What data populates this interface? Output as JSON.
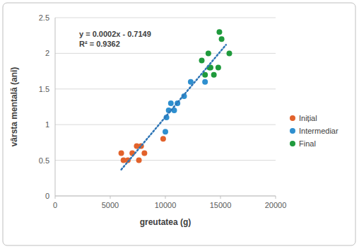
{
  "chart_data": {
    "type": "scatter",
    "x_label": "greutatea (g)",
    "y_label": "vârsta mentală (ani)",
    "annotations": [
      "y = 0.0002x  - 0.7149",
      "R² = 0.9362"
    ],
    "xlim": [
      0,
      20000
    ],
    "xticks": [
      0,
      5000,
      10000,
      15000,
      20000
    ],
    "ylim": [
      0,
      2.5
    ],
    "yticks": [
      0,
      0.5,
      1,
      1.5,
      2,
      2.5
    ],
    "grid": true,
    "legend": "right",
    "series": [
      {
        "name": "Inițial",
        "color": "#e2622b",
        "marker": "circle",
        "x": [
          6000,
          6200,
          6600,
          7000,
          7400,
          7600,
          7800,
          8100,
          9800
        ],
        "values": [
          0.6,
          0.5,
          0.5,
          0.6,
          0.7,
          0.5,
          0.7,
          0.6,
          0.8
        ]
      },
      {
        "name": "Intermediar",
        "color": "#2e8fcf",
        "marker": "circle",
        "x": [
          10000,
          10100,
          10300,
          10500,
          10800,
          11100,
          11700,
          12300,
          13600
        ],
        "values": [
          0.9,
          1.1,
          1.2,
          1.3,
          1.2,
          1.3,
          1.4,
          1.6,
          1.6
        ]
      },
      {
        "name": "Final",
        "color": "#1f9a3c",
        "marker": "circle",
        "x": [
          13300,
          13600,
          13900,
          14000,
          14100,
          14400,
          14800,
          14900,
          15100,
          15800
        ],
        "values": [
          1.9,
          1.7,
          2.0,
          1.8,
          1.8,
          1.7,
          1.8,
          2.3,
          2.2,
          2.0
        ]
      },
      {
        "type": "line",
        "line_style": "dotted",
        "color": "#2e75b6",
        "x": [
          6000,
          15500
        ],
        "values": [
          0.37,
          2.12
        ]
      }
    ]
  }
}
